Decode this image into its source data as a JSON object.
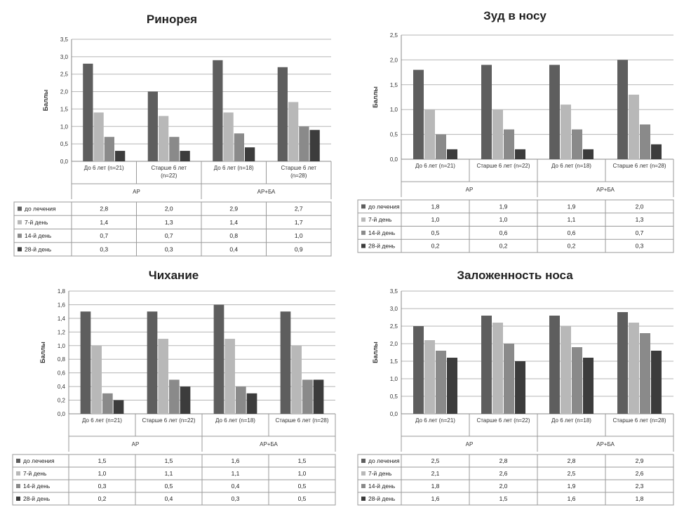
{
  "colors": {
    "series": [
      "#5e5e5e",
      "#b8b8b8",
      "#8a8a8a",
      "#3c3c3c"
    ],
    "grid": "#b5b5b5",
    "axis": "#888888"
  },
  "chart_data": [
    {
      "type": "bar",
      "title": "Ринорея",
      "ylabel": "Баллы",
      "ylim": [
        0,
        3.5
      ],
      "yticks": [
        "0,0",
        "0,5",
        "1,0",
        "1,5",
        "2,0",
        "2,5",
        "3,0",
        "3,5"
      ],
      "categories": [
        "До 6 лет (n=21)",
        "Старше 6 лет (n=22)",
        "До 6 лет (n=18)",
        "Старше 6 лет (n=28)"
      ],
      "groups": [
        "АР",
        "АР+БА"
      ],
      "series": [
        {
          "name": "до лечения",
          "values": [
            2.8,
            2.0,
            2.9,
            2.7
          ],
          "labels": [
            "2,8",
            "2,0",
            "2,9",
            "2,7"
          ]
        },
        {
          "name": "7-й день",
          "values": [
            1.4,
            1.3,
            1.4,
            1.7
          ],
          "labels": [
            "1,4",
            "1,3",
            "1,4",
            "1,7"
          ]
        },
        {
          "name": "14-й день",
          "values": [
            0.7,
            0.7,
            0.8,
            1.0
          ],
          "labels": [
            "0,7",
            "0,7",
            "0,8",
            "1,0"
          ]
        },
        {
          "name": "28-й день",
          "values": [
            0.3,
            0.3,
            0.4,
            0.9
          ],
          "labels": [
            "0,3",
            "0,3",
            "0,4",
            "0,9"
          ]
        }
      ],
      "grid": true
    },
    {
      "type": "bar",
      "title": "Зуд в носу",
      "ylabel": "Баллы",
      "ylim": [
        0,
        2.5
      ],
      "yticks": [
        "0,0",
        "0,5",
        "1,0",
        "1,5",
        "2,0",
        "2,5"
      ],
      "categories": [
        "До 6 лет (n=21)",
        "Старше 6 лет (n=22)",
        "До 6 лет (n=18)",
        "Старше 6 лет (n=28)"
      ],
      "groups": [
        "АР",
        "АР+БА"
      ],
      "series": [
        {
          "name": "до лечения",
          "values": [
            1.8,
            1.9,
            1.9,
            2.0
          ],
          "labels": [
            "1,8",
            "1,9",
            "1,9",
            "2,0"
          ]
        },
        {
          "name": "7-й день",
          "values": [
            1.0,
            1.0,
            1.1,
            1.3
          ],
          "labels": [
            "1,0",
            "1,0",
            "1,1",
            "1,3"
          ]
        },
        {
          "name": "14-й день",
          "values": [
            0.5,
            0.6,
            0.6,
            0.7
          ],
          "labels": [
            "0,5",
            "0,6",
            "0,6",
            "0,7"
          ]
        },
        {
          "name": "28-й день",
          "values": [
            0.2,
            0.2,
            0.2,
            0.3
          ],
          "labels": [
            "0,2",
            "0,2",
            "0,2",
            "0,3"
          ]
        }
      ],
      "grid": true
    },
    {
      "type": "bar",
      "title": "Чихание",
      "ylabel": "Баллы",
      "ylim": [
        0,
        1.8
      ],
      "yticks": [
        "0,0",
        "0,2",
        "0,4",
        "0,6",
        "0,8",
        "1,0",
        "1,2",
        "1,4",
        "1,6",
        "1,8"
      ],
      "categories": [
        "До 6 лет (n=21)",
        "Старше 6 лет (n=22)",
        "До 6 лет (n=18)",
        "Старше 6 лет (n=28)"
      ],
      "groups": [
        "АР",
        "АР+БА"
      ],
      "series": [
        {
          "name": "до лечения",
          "values": [
            1.5,
            1.5,
            1.6,
            1.5
          ],
          "labels": [
            "1,5",
            "1,5",
            "1,6",
            "1,5"
          ]
        },
        {
          "name": "7-й день",
          "values": [
            1.0,
            1.1,
            1.1,
            1.0
          ],
          "labels": [
            "1,0",
            "1,1",
            "1,1",
            "1,0"
          ]
        },
        {
          "name": "14-й день",
          "values": [
            0.3,
            0.5,
            0.4,
            0.5
          ],
          "labels": [
            "0,3",
            "0,5",
            "0,4",
            "0,5"
          ]
        },
        {
          "name": "28-й день",
          "values": [
            0.2,
            0.4,
            0.3,
            0.5
          ],
          "labels": [
            "0,2",
            "0,4",
            "0,3",
            "0,5"
          ]
        }
      ],
      "grid": true
    },
    {
      "type": "bar",
      "title": "Заложенность носа",
      "ylabel": "Баллы",
      "ylim": [
        0,
        3.5
      ],
      "yticks": [
        "0,0",
        "0,5",
        "1,0",
        "1,5",
        "2,0",
        "2,5",
        "3,0",
        "3,5"
      ],
      "categories": [
        "До 6 лет (n=21)",
        "Старше 6 лет (n=22)",
        "До 6 лет (n=18)",
        "Старше 6 лет (n=28)"
      ],
      "groups": [
        "АР",
        "АР+БА"
      ],
      "series": [
        {
          "name": "до лечения",
          "values": [
            2.5,
            2.8,
            2.8,
            2.9
          ],
          "labels": [
            "2,5",
            "2,8",
            "2,8",
            "2,9"
          ]
        },
        {
          "name": "7-й день",
          "values": [
            2.1,
            2.6,
            2.5,
            2.6
          ],
          "labels": [
            "2,1",
            "2,6",
            "2,5",
            "2,6"
          ]
        },
        {
          "name": "14-й день",
          "values": [
            1.8,
            2.0,
            1.9,
            2.3
          ],
          "labels": [
            "1,8",
            "2,0",
            "1,9",
            "2,3"
          ]
        },
        {
          "name": "28-й день",
          "values": [
            1.6,
            1.5,
            1.6,
            1.8
          ],
          "labels": [
            "1,6",
            "1,5",
            "1,6",
            "1,8"
          ]
        }
      ],
      "grid": true
    }
  ]
}
